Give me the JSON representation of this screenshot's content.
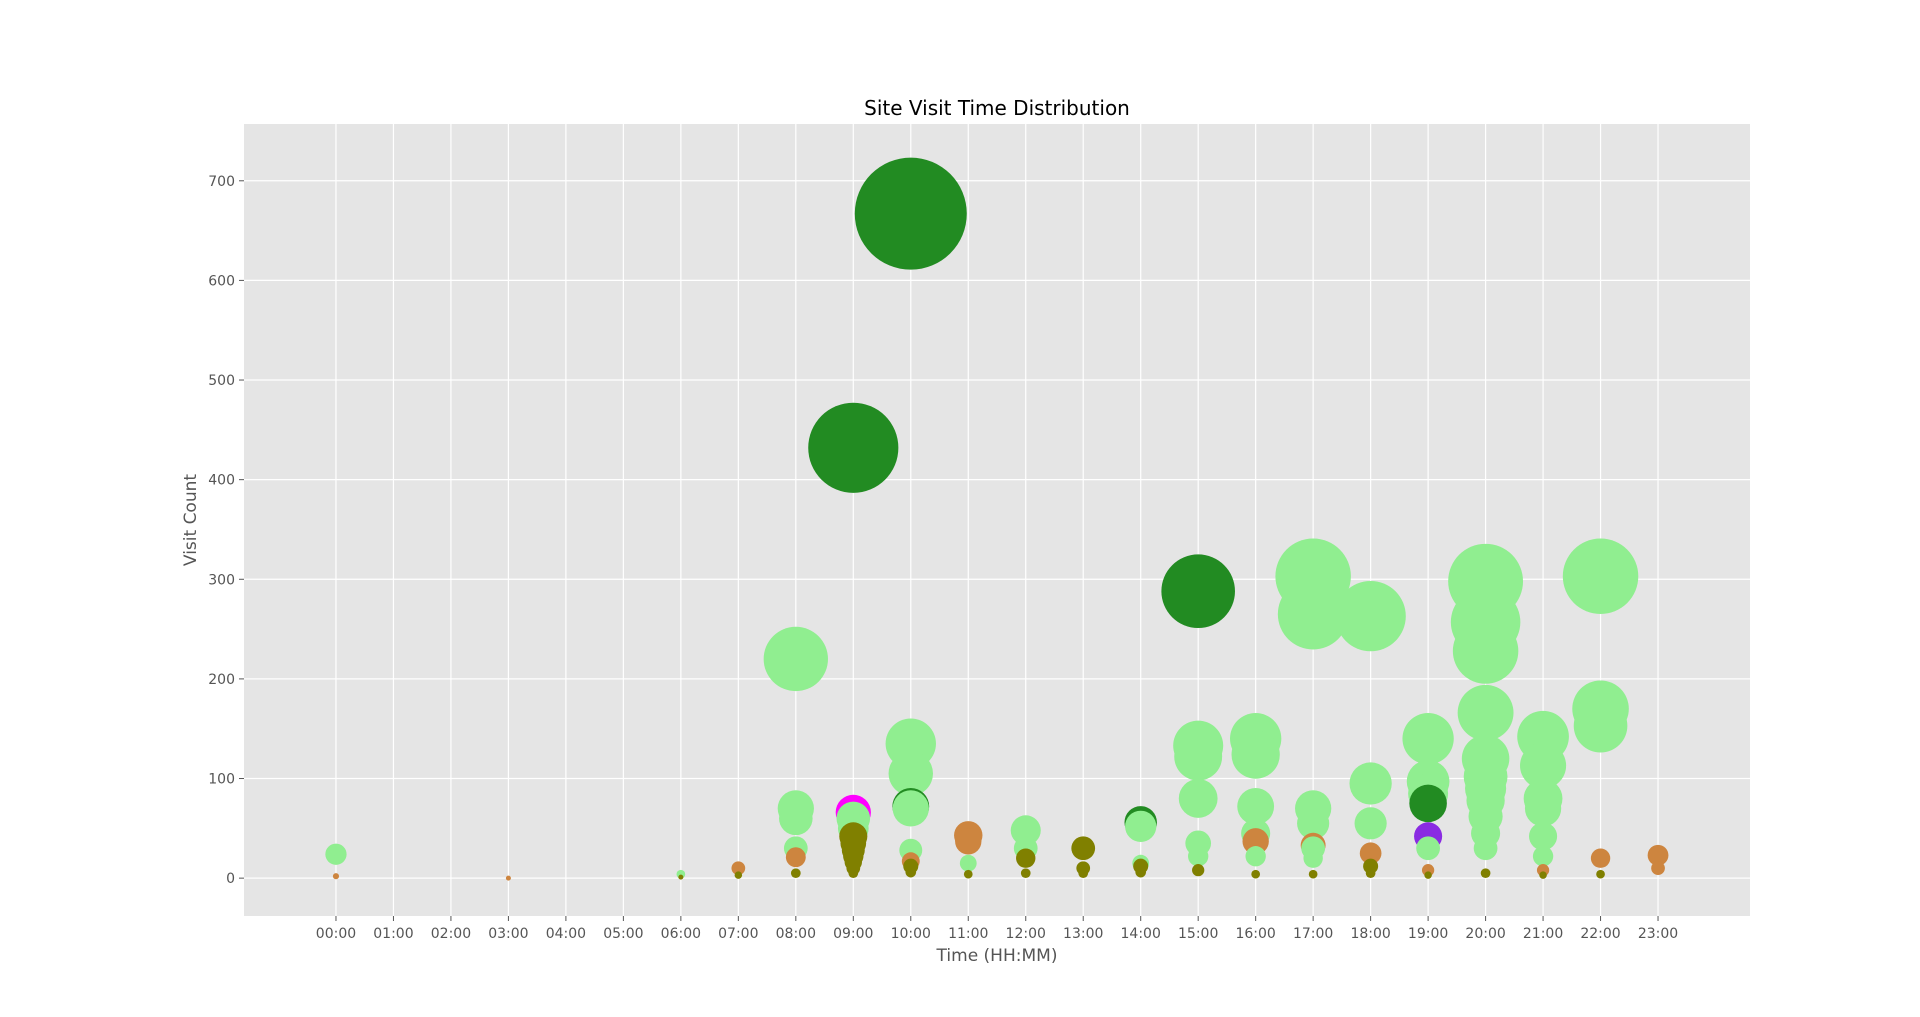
{
  "colors": {
    "plot_background": "#E5E5E5",
    "grid": "#FFFFFF",
    "light_green": "#90EE90",
    "dark_green": "#228B22",
    "olive": "#808000",
    "peru": "#CD853F",
    "magenta": "#FF00FF",
    "purple": "#8A2BE2"
  },
  "chart_data": {
    "type": "scatter",
    "title": "Site Visit Time Distribution",
    "xlabel": "Time (HH:MM)",
    "ylabel": "Visit Count",
    "x_ticks": [
      "00:00",
      "01:00",
      "02:00",
      "03:00",
      "04:00",
      "05:00",
      "06:00",
      "07:00",
      "08:00",
      "09:00",
      "10:00",
      "11:00",
      "12:00",
      "13:00",
      "14:00",
      "15:00",
      "16:00",
      "17:00",
      "18:00",
      "19:00",
      "20:00",
      "21:00",
      "22:00",
      "23:00"
    ],
    "y_ticks": [
      0,
      100,
      200,
      300,
      400,
      500,
      600,
      700
    ],
    "xlim": [
      -1.6,
      24.6
    ],
    "ylim": [
      -38,
      757
    ],
    "grid": true,
    "bubble_size_encodes": "Visit Count",
    "series": [
      {
        "color": "#90EE90",
        "points": [
          [
            0,
            24
          ],
          [
            6,
            4
          ],
          [
            8,
            220
          ],
          [
            8,
            70
          ],
          [
            8,
            60
          ],
          [
            8,
            30
          ],
          [
            9,
            60
          ],
          [
            9,
            50
          ],
          [
            10,
            135
          ],
          [
            10,
            105
          ],
          [
            10,
            70
          ],
          [
            10,
            28
          ],
          [
            11,
            15
          ],
          [
            12,
            48
          ],
          [
            12,
            30
          ],
          [
            14,
            52
          ],
          [
            14,
            15
          ],
          [
            15,
            133
          ],
          [
            15,
            122
          ],
          [
            15,
            80
          ],
          [
            15,
            35
          ],
          [
            15,
            22
          ],
          [
            16,
            140
          ],
          [
            16,
            124
          ],
          [
            16,
            72
          ],
          [
            16,
            45
          ],
          [
            16,
            22
          ],
          [
            17,
            303
          ],
          [
            17,
            265
          ],
          [
            17,
            70
          ],
          [
            17,
            55
          ],
          [
            17,
            30
          ],
          [
            17,
            20
          ],
          [
            18,
            263
          ],
          [
            18,
            95
          ],
          [
            18,
            55
          ],
          [
            19,
            140
          ],
          [
            19,
            97
          ],
          [
            19,
            85
          ],
          [
            19,
            30
          ],
          [
            20,
            298
          ],
          [
            20,
            257
          ],
          [
            20,
            228
          ],
          [
            20,
            166
          ],
          [
            20,
            120
          ],
          [
            20,
            102
          ],
          [
            20,
            90
          ],
          [
            20,
            78
          ],
          [
            20,
            62
          ],
          [
            20,
            45
          ],
          [
            20,
            30
          ],
          [
            21,
            142
          ],
          [
            21,
            113
          ],
          [
            21,
            80
          ],
          [
            21,
            70
          ],
          [
            21,
            42
          ],
          [
            21,
            22
          ],
          [
            22,
            303
          ],
          [
            22,
            170
          ],
          [
            22,
            153
          ]
        ]
      },
      {
        "color": "#228B22",
        "points": [
          [
            9,
            432
          ],
          [
            10,
            667
          ],
          [
            10,
            72
          ],
          [
            14,
            56
          ],
          [
            15,
            288
          ],
          [
            19,
            75
          ]
        ]
      },
      {
        "color": "#CD853F",
        "points": [
          [
            0,
            2
          ],
          [
            3,
            0
          ],
          [
            7,
            10
          ],
          [
            8,
            21
          ],
          [
            10,
            17
          ],
          [
            11,
            43
          ],
          [
            11,
            37
          ],
          [
            16,
            37
          ],
          [
            17,
            33
          ],
          [
            18,
            25
          ],
          [
            19,
            8
          ],
          [
            21,
            8
          ],
          [
            22,
            20
          ],
          [
            23,
            23
          ],
          [
            23,
            10
          ]
        ]
      },
      {
        "color": "#FF00FF",
        "points": [
          [
            9,
            66
          ]
        ]
      },
      {
        "color": "#8A2BE2",
        "points": [
          [
            19,
            42
          ]
        ]
      },
      {
        "color": "#808000",
        "points": [
          [
            6,
            1
          ],
          [
            7,
            3
          ],
          [
            8,
            5
          ],
          [
            9,
            42
          ],
          [
            9,
            35
          ],
          [
            9,
            28
          ],
          [
            9,
            22
          ],
          [
            9,
            16
          ],
          [
            9,
            10
          ],
          [
            9,
            5
          ],
          [
            10,
            12
          ],
          [
            10,
            6
          ],
          [
            11,
            4
          ],
          [
            12,
            20
          ],
          [
            12,
            5
          ],
          [
            13,
            30
          ],
          [
            13,
            10
          ],
          [
            13,
            5
          ],
          [
            14,
            12
          ],
          [
            14,
            6
          ],
          [
            15,
            8
          ],
          [
            16,
            4
          ],
          [
            17,
            4
          ],
          [
            18,
            12
          ],
          [
            18,
            5
          ],
          [
            19,
            3
          ],
          [
            20,
            5
          ],
          [
            21,
            3
          ],
          [
            22,
            4
          ]
        ]
      }
    ]
  }
}
